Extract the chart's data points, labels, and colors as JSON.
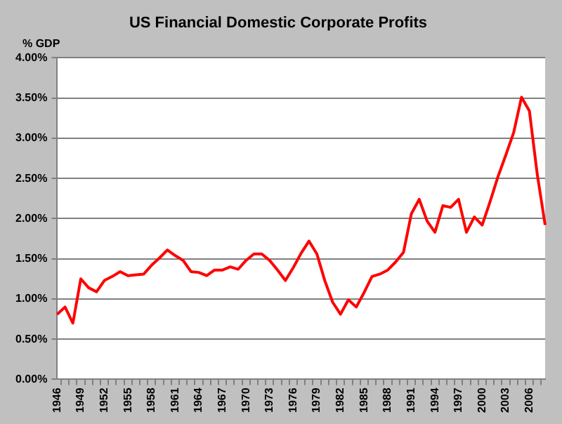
{
  "chart_data": {
    "type": "line",
    "title": "US Financial Domestic Corporate Profits",
    "ylabel": "% GDP",
    "categories": [
      "1946",
      null,
      null,
      "1949",
      null,
      null,
      "1952",
      null,
      null,
      "1955",
      null,
      null,
      "1958",
      null,
      null,
      "1961",
      null,
      null,
      "1964",
      null,
      null,
      "1967",
      null,
      null,
      "1970",
      null,
      null,
      "1973",
      null,
      null,
      "1976",
      null,
      null,
      "1979",
      null,
      null,
      "1982",
      null,
      null,
      "1985",
      null,
      null,
      "1988",
      null,
      null,
      "1991",
      null,
      null,
      "1994",
      null,
      null,
      "1997",
      null,
      null,
      "2000",
      null,
      null,
      "2003",
      null,
      null,
      "2006",
      null,
      null
    ],
    "series": [
      {
        "color": "#ff0000",
        "values": [
          0.81,
          0.9,
          0.7,
          1.25,
          1.14,
          1.09,
          1.23,
          1.28,
          1.34,
          1.29,
          1.3,
          1.31,
          1.42,
          1.51,
          1.61,
          1.54,
          1.48,
          1.34,
          1.33,
          1.29,
          1.36,
          1.36,
          1.4,
          1.37,
          1.48,
          1.56,
          1.56,
          1.48,
          1.36,
          1.23,
          1.39,
          1.57,
          1.72,
          1.56,
          1.23,
          0.96,
          0.81,
          0.99,
          0.9,
          1.08,
          1.28,
          1.31,
          1.36,
          1.46,
          1.58,
          2.06,
          2.24,
          1.97,
          1.83,
          2.16,
          2.14,
          2.24,
          1.83,
          2.02,
          1.92,
          2.21,
          2.52,
          2.79,
          3.07,
          3.51,
          3.34,
          2.55,
          1.92
        ]
      }
    ],
    "ylim": [
      0,
      4
    ],
    "yticks": [
      {
        "value": 0,
        "label": "0.00%"
      },
      {
        "value": 0.5,
        "label": "0.50%"
      },
      {
        "value": 1,
        "label": "1.00%"
      },
      {
        "value": 1.5,
        "label": "1.50%"
      },
      {
        "value": 2,
        "label": "2.00%"
      },
      {
        "value": 2.5,
        "label": "2.50%"
      },
      {
        "value": 3,
        "label": "3.00%"
      },
      {
        "value": 3.5,
        "label": "3.50%"
      },
      {
        "value": 4,
        "label": "4.00%"
      }
    ],
    "grid": "y",
    "legend": false,
    "marker": "none",
    "line_style": "solid"
  }
}
